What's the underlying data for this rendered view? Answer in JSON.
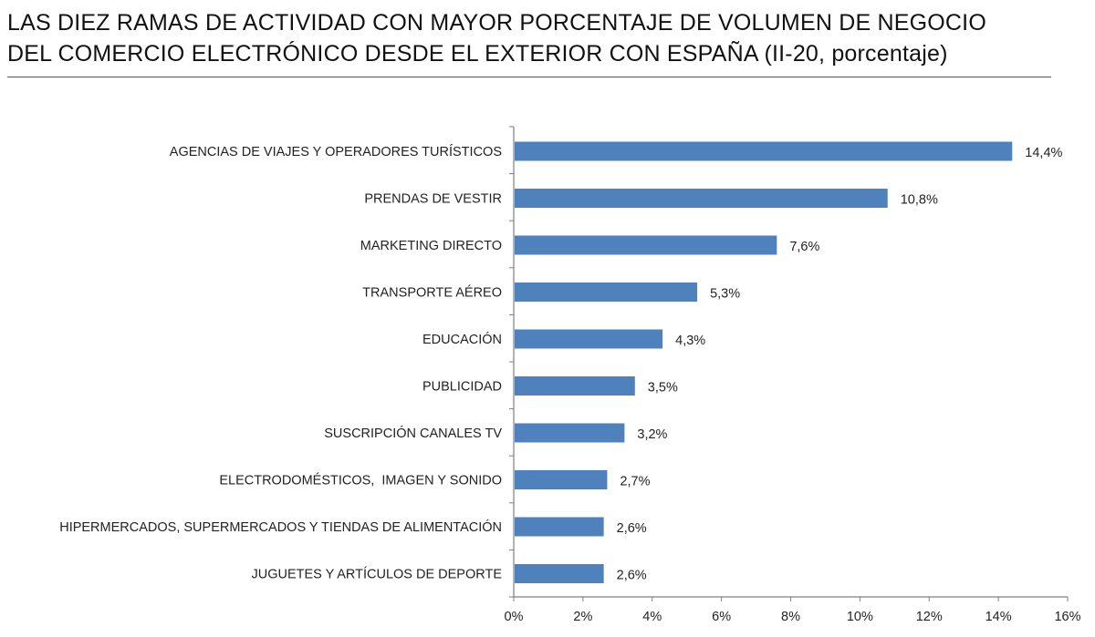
{
  "title_lines": [
    "LAS DIEZ RAMAS DE ACTIVIDAD CON MAYOR PORCENTAJE DE VOLUMEN DE NEGOCIO",
    "DEL COMERCIO ELECTRÓNICO DESDE EL EXTERIOR CON ESPAÑA (II-20, porcentaje)"
  ],
  "chart_data": {
    "type": "bar",
    "orientation": "horizontal",
    "title": "LAS DIEZ RAMAS DE ACTIVIDAD CON MAYOR PORCENTAJE DE VOLUMEN DE NEGOCIO DEL COMERCIO ELECTRÓNICO DESDE EL EXTERIOR CON ESPAÑA (II-20, porcentaje)",
    "categories": [
      "AGENCIAS DE VIAJES Y OPERADORES TURÍSTICOS",
      "PRENDAS DE VESTIR",
      "MARKETING DIRECTO",
      "TRANSPORTE AÉREO",
      "EDUCACIÓN",
      "PUBLICIDAD",
      "SUSCRIPCIÓN CANALES TV",
      "ELECTRODOMÉSTICOS,  IMAGEN Y SONIDO",
      "HIPERMERCADOS, SUPERMERCADOS Y TIENDAS DE ALIMENTACIÓN",
      "JUGUETES Y ARTÍCULOS DE DEPORTE"
    ],
    "values": [
      14.4,
      10.8,
      7.6,
      5.3,
      4.3,
      3.5,
      3.2,
      2.7,
      2.6,
      2.6
    ],
    "value_labels": [
      "14,4%",
      "10,8%",
      "7,6%",
      "5,3%",
      "4,3%",
      "3,5%",
      "3,2%",
      "2,7%",
      "2,6%",
      "2,6%"
    ],
    "xlim": [
      0,
      16
    ],
    "xticks": [
      0,
      2,
      4,
      6,
      8,
      10,
      12,
      14,
      16
    ],
    "xtick_labels": [
      "0%",
      "2%",
      "4%",
      "6%",
      "8%",
      "10%",
      "12%",
      "14%",
      "16%"
    ],
    "xlabel": "",
    "ylabel": "",
    "grid": false,
    "legend": "none",
    "bar_color": "#4f81bd"
  }
}
